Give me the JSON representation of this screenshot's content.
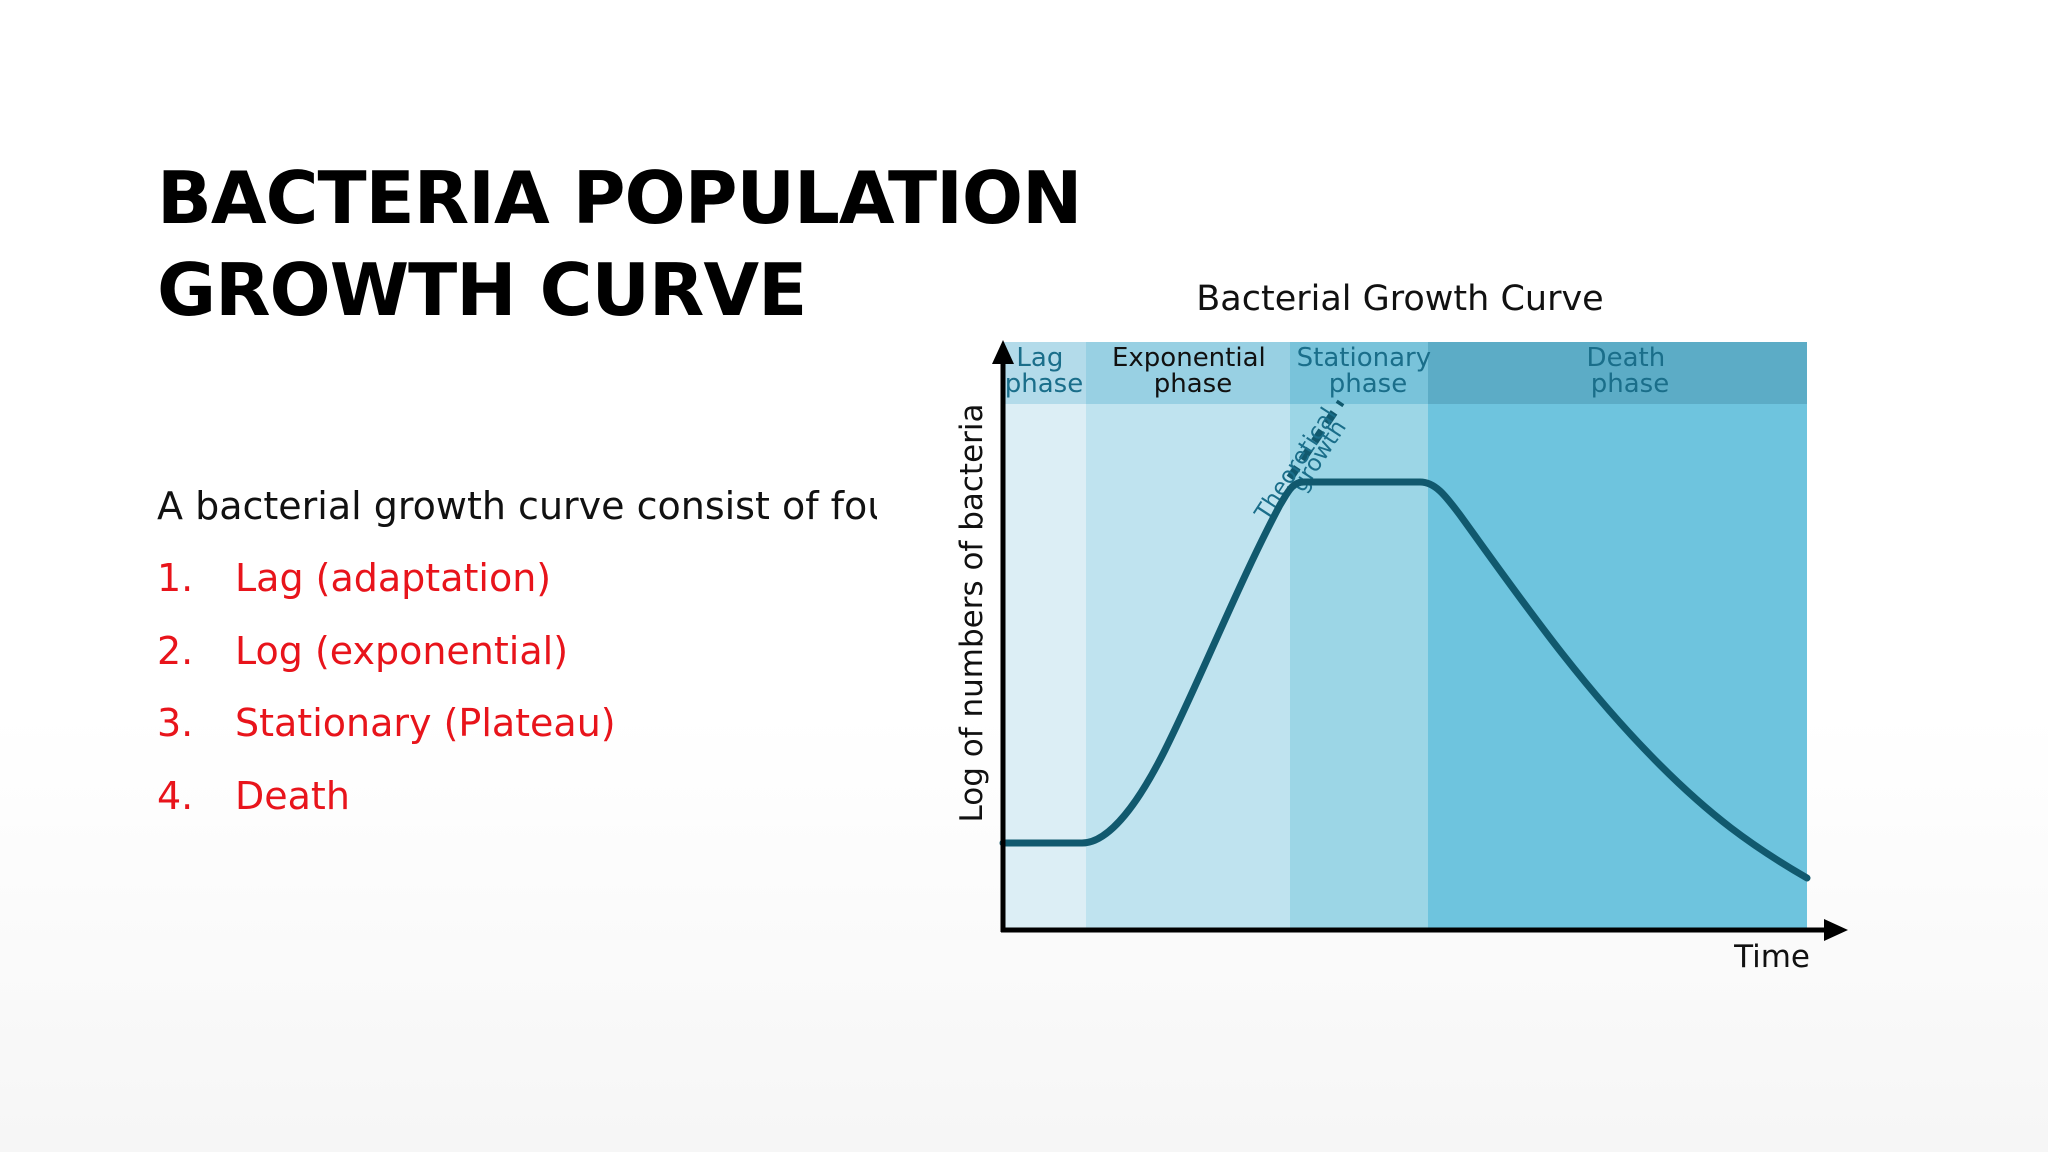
{
  "slide": {
    "title_lines": [
      "BACTERIA POPULATION",
      "GROWTH CURVE"
    ],
    "intro_text": "A bacterial growth curve consist of fou",
    "list": [
      {
        "number": "1.",
        "label": "Lag (adaptation)"
      },
      {
        "number": "2.",
        "label": "Log (exponential)"
      },
      {
        "number": "3.",
        "label": "Stationary (Plateau)"
      },
      {
        "number": "4.",
        "label": "Death"
      }
    ],
    "list_color": "#e8141b"
  },
  "diagram": {
    "title": "Bacterial Growth Curve",
    "y_axis_label": "Log of numbers of bacteria",
    "x_axis_label": "Time",
    "phases": [
      {
        "line1": "Lag",
        "line2": "phase",
        "color": "#dceef5",
        "header_color": "#b3dbea",
        "label_color": "#1a6e8a"
      },
      {
        "line1": "Exponential",
        "line2": "phase",
        "color": "#bfe3ef",
        "header_color": "#98d0e3",
        "label_color": "#111111"
      },
      {
        "line1": "Stationary",
        "line2": "phase",
        "color": "#9cd6e6",
        "header_color": "#79c3da",
        "label_color": "#1a6e8a"
      },
      {
        "line1": "Death",
        "line2": "phase",
        "color": "#6ec4de",
        "header_color": "#5cacc6",
        "label_color": "#1a6e8a"
      }
    ],
    "theoretical_label_line1": "Theoretical",
    "theoretical_label_line2": "growth",
    "curve_color": "#11596e"
  }
}
